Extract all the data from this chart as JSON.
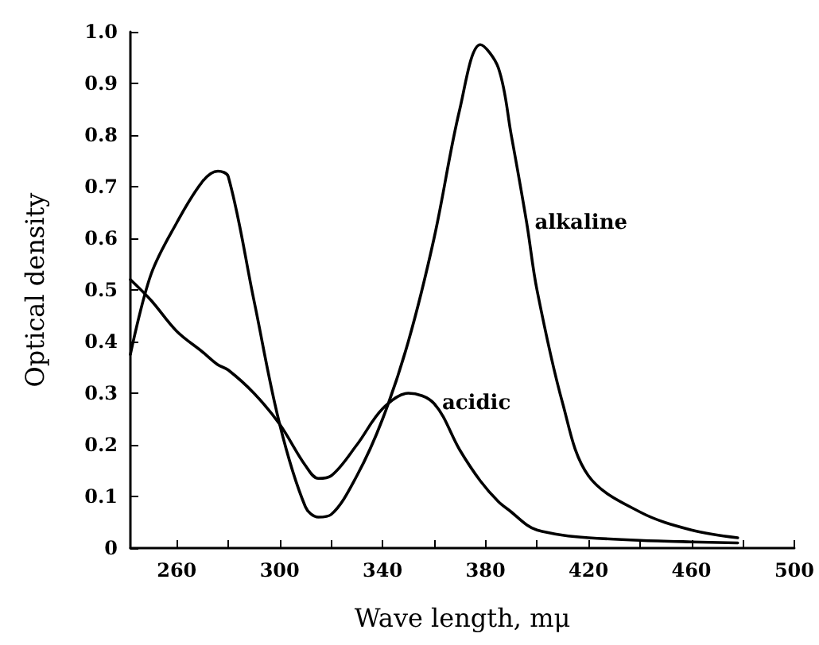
{
  "chart_data": {
    "type": "line",
    "xlabel": "Wave length, mμ",
    "ylabel": "Optical density",
    "x": [
      242,
      250,
      260,
      270,
      276,
      280,
      290,
      300,
      310,
      315,
      320,
      330,
      340,
      350,
      360,
      370,
      378,
      385,
      390,
      396,
      400,
      410,
      420,
      440,
      460,
      478
    ],
    "series": [
      {
        "color": "#000000",
        "values": [
          0.375,
          0.53,
          0.63,
          0.71,
          0.73,
          0.72,
          0.48,
          0.24,
          0.08,
          0.06,
          0.065,
          0.14,
          0.25,
          0.4,
          0.6,
          0.85,
          0.975,
          0.93,
          0.8,
          0.63,
          0.5,
          0.28,
          0.14,
          0.07,
          0.035,
          0.02
        ]
      },
      {
        "color": "#000000",
        "values": [
          0.52,
          0.48,
          0.42,
          0.38,
          0.355,
          0.345,
          0.3,
          0.24,
          0.16,
          0.135,
          0.14,
          0.2,
          0.27,
          0.3,
          0.28,
          0.19,
          0.13,
          0.09,
          0.07,
          0.045,
          0.035,
          0.025,
          0.02,
          0.015,
          0.012,
          0.01
        ]
      }
    ],
    "xlim": [
      242,
      500
    ],
    "xticks": [
      260,
      {
        "value": 280,
        "label": null
      },
      300,
      {
        "value": 320,
        "label": null
      },
      340,
      {
        "value": 360,
        "label": null
      },
      380,
      {
        "value": 400,
        "label": null
      },
      420,
      {
        "value": 440,
        "label": null
      },
      460,
      {
        "value": 480,
        "label": null
      },
      500
    ],
    "ylim": [
      0,
      1.0
    ],
    "yticks": [
      0,
      0.1,
      0.2,
      0.3,
      0.4,
      0.5,
      0.6,
      0.7,
      0.8,
      0.9,
      {
        "value": 1.0,
        "label": "1.0"
      }
    ],
    "annotations": [
      {
        "text": "alkaline",
        "x": 396,
        "y": 0.63
      },
      {
        "text": "acidic",
        "x": 360,
        "y": 0.28
      }
    ],
    "grid": false,
    "marker": "none",
    "line_style": "solid"
  }
}
